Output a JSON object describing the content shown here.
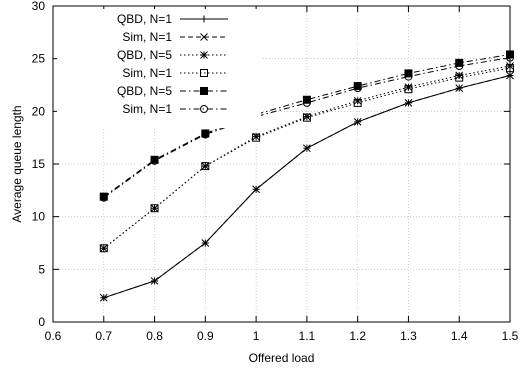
{
  "chart_data": {
    "type": "line",
    "title": "",
    "xlabel": "Offered load",
    "ylabel": "Average queue length",
    "xlim": [
      0.6,
      1.5
    ],
    "ylim": [
      0,
      30
    ],
    "xticks": [
      "0.6",
      "0.7",
      "0.8",
      "0.9",
      "1",
      "1.1",
      "1.2",
      "1.3",
      "1.4",
      "1.5"
    ],
    "yticks": [
      "0",
      "5",
      "10",
      "15",
      "20",
      "25",
      "30"
    ],
    "grid": true,
    "legend_position": "top-left",
    "x": [
      0.7,
      0.8,
      0.9,
      1.0,
      1.1,
      1.2,
      1.3,
      1.4,
      1.5
    ],
    "series": [
      {
        "name": "QBD, N=1",
        "marker": "plus",
        "dash": "solid",
        "values": [
          2.3,
          3.9,
          7.5,
          12.6,
          16.5,
          19.0,
          20.8,
          22.2,
          23.4
        ]
      },
      {
        "name": "Sim, N=1",
        "marker": "x",
        "dash": "dashed",
        "values": [
          2.3,
          3.9,
          7.5,
          12.6,
          16.5,
          19.0,
          20.8,
          22.2,
          23.4
        ]
      },
      {
        "name": "QBD, N=5",
        "marker": "star",
        "dash": "dotted",
        "values": [
          7.0,
          10.8,
          14.8,
          17.6,
          19.5,
          21.0,
          22.3,
          23.4,
          24.3
        ]
      },
      {
        "name": "Sim, N=1",
        "marker": "square-open",
        "dash": "dotted",
        "values": [
          7.0,
          10.8,
          14.8,
          17.5,
          19.4,
          20.8,
          22.1,
          23.2,
          24.1
        ]
      },
      {
        "name": "QBD, N=5",
        "marker": "square-filled",
        "dash": "dashdot",
        "values": [
          11.9,
          15.4,
          17.9,
          19.7,
          21.1,
          22.4,
          23.6,
          24.6,
          25.4
        ]
      },
      {
        "name": "Sim, N=1",
        "marker": "circle-open",
        "dash": "dashdot",
        "values": [
          11.8,
          15.3,
          17.8,
          19.5,
          20.8,
          22.2,
          23.3,
          24.3,
          25.1
        ]
      }
    ]
  }
}
